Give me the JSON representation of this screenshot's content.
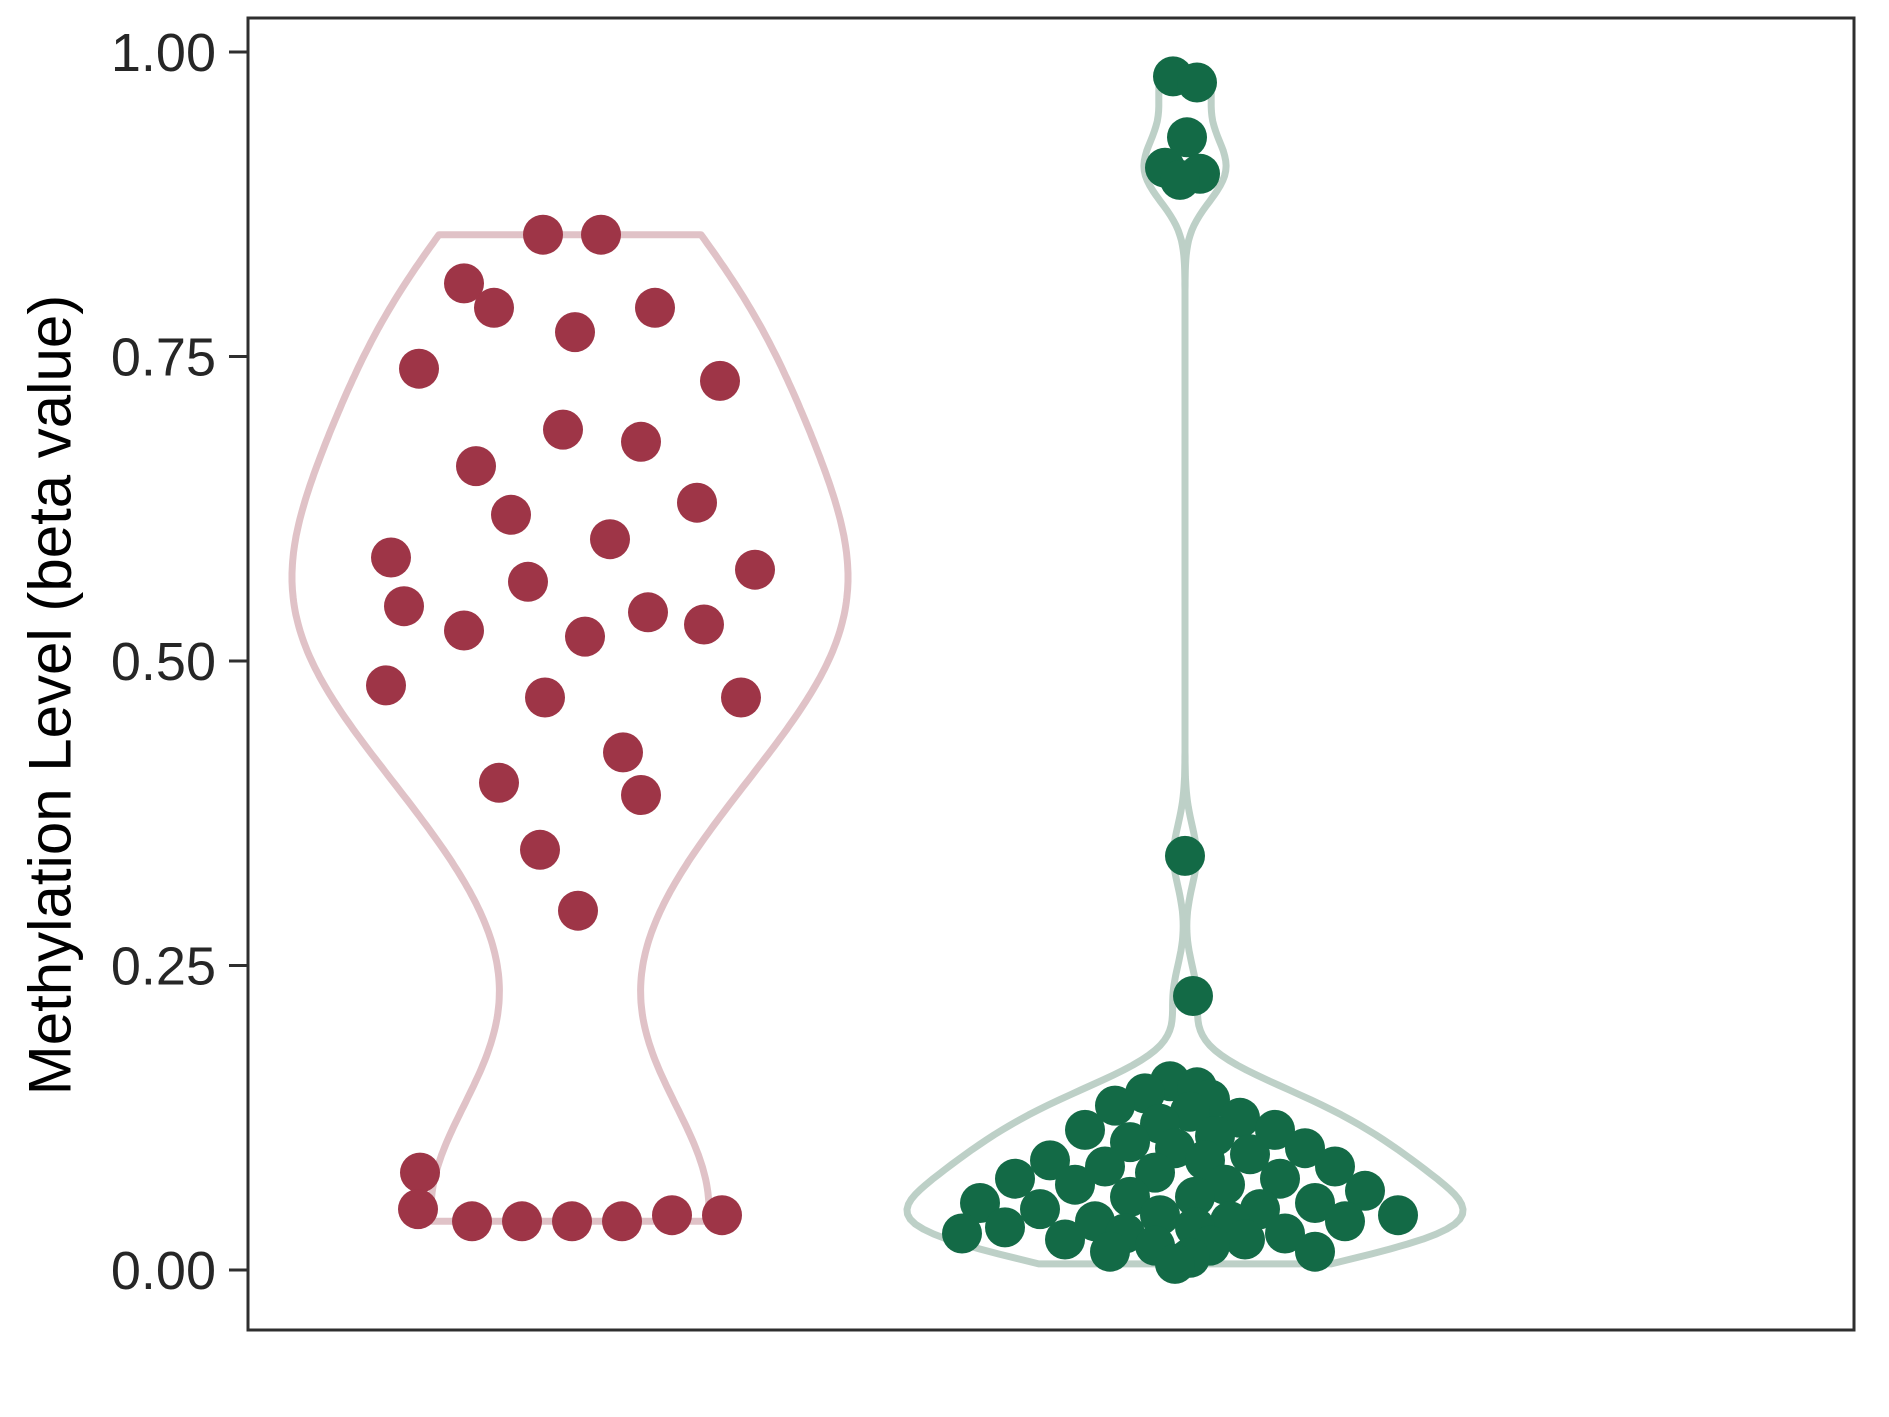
{
  "chart_data": {
    "type": "violin",
    "title": "",
    "xlabel": "",
    "ylabel": "Methylation Level (beta value)",
    "ylim": [
      0,
      1.0
    ],
    "grid": "off",
    "legend": "none",
    "y_ticks": [
      {
        "value": 0.0,
        "label": "0.00"
      },
      {
        "value": 0.25,
        "label": "0.25"
      },
      {
        "value": 0.5,
        "label": "0.50"
      },
      {
        "value": 0.75,
        "label": "0.75"
      },
      {
        "value": 1.0,
        "label": "1.00"
      }
    ],
    "centers": [
      570,
      1185
    ],
    "max_half_width": 278,
    "point_radius": 20,
    "colors": {
      "panel_border": "#2f2f2f",
      "tick_text": "#262626",
      "background": "#ffffff"
    },
    "groups": [
      {
        "name": "left",
        "point_color": "#9e3547",
        "outline_color": "#e0c2c7",
        "points": [
          [
            0.85,
            -27
          ],
          [
            0.85,
            31
          ],
          [
            0.81,
            -106
          ],
          [
            0.79,
            -76
          ],
          [
            0.79,
            85
          ],
          [
            0.77,
            5
          ],
          [
            0.74,
            -151
          ],
          [
            0.73,
            150
          ],
          [
            0.69,
            -7
          ],
          [
            0.68,
            71
          ],
          [
            0.66,
            -94
          ],
          [
            0.63,
            127
          ],
          [
            0.62,
            -59
          ],
          [
            0.6,
            40
          ],
          [
            0.585,
            -179
          ],
          [
            0.575,
            185
          ],
          [
            0.565,
            -42
          ],
          [
            0.545,
            -166
          ],
          [
            0.54,
            78
          ],
          [
            0.53,
            134
          ],
          [
            0.525,
            -106
          ],
          [
            0.52,
            15
          ],
          [
            0.48,
            -184
          ],
          [
            0.47,
            -25
          ],
          [
            0.47,
            171
          ],
          [
            0.425,
            53
          ],
          [
            0.4,
            -71
          ],
          [
            0.39,
            71
          ],
          [
            0.345,
            -30
          ],
          [
            0.295,
            8
          ],
          [
            0.08,
            -150
          ],
          [
            0.05,
            -152
          ],
          [
            0.04,
            -98
          ],
          [
            0.04,
            -48
          ],
          [
            0.04,
            2
          ],
          [
            0.04,
            52
          ],
          [
            0.045,
            102
          ],
          [
            0.045,
            152
          ]
        ]
      },
      {
        "name": "right",
        "point_color": "#136a46",
        "outline_color": "#bdd0c7",
        "points": [
          [
            0.98,
            -12
          ],
          [
            0.975,
            12
          ],
          [
            0.93,
            2
          ],
          [
            0.905,
            -20
          ],
          [
            0.9,
            15
          ],
          [
            0.895,
            -5
          ],
          [
            0.34,
            0
          ],
          [
            0.225,
            8
          ],
          [
            0.155,
            -15
          ],
          [
            0.15,
            12
          ],
          [
            0.145,
            -40
          ],
          [
            0.14,
            25
          ],
          [
            0.135,
            -70
          ],
          [
            0.13,
            5
          ],
          [
            0.125,
            55
          ],
          [
            0.12,
            -25
          ],
          [
            0.115,
            90
          ],
          [
            0.115,
            -100
          ],
          [
            0.11,
            30
          ],
          [
            0.105,
            -55
          ],
          [
            0.1,
            120
          ],
          [
            0.1,
            -10
          ],
          [
            0.095,
            65
          ],
          [
            0.09,
            -135
          ],
          [
            0.09,
            20
          ],
          [
            0.085,
            -80
          ],
          [
            0.085,
            150
          ],
          [
            0.08,
            -30
          ],
          [
            0.075,
            95
          ],
          [
            0.075,
            -170
          ],
          [
            0.07,
            40
          ],
          [
            0.07,
            -110
          ],
          [
            0.065,
            180
          ],
          [
            0.06,
            -55
          ],
          [
            0.06,
            10
          ],
          [
            0.055,
            -205
          ],
          [
            0.055,
            130
          ],
          [
            0.05,
            75
          ],
          [
            0.05,
            -145
          ],
          [
            0.045,
            213
          ],
          [
            0.045,
            -25
          ],
          [
            0.04,
            45
          ],
          [
            0.04,
            -90
          ],
          [
            0.04,
            160
          ],
          [
            0.035,
            -180
          ],
          [
            0.035,
            10
          ],
          [
            0.03,
            100
          ],
          [
            0.03,
            -60
          ],
          [
            0.03,
            -223
          ],
          [
            0.025,
            60
          ],
          [
            0.025,
            -120
          ],
          [
            0.02,
            25
          ],
          [
            0.02,
            -30
          ],
          [
            0.015,
            130
          ],
          [
            0.015,
            -75
          ],
          [
            0.01,
            5
          ],
          [
            0.005,
            -10
          ]
        ]
      }
    ]
  }
}
